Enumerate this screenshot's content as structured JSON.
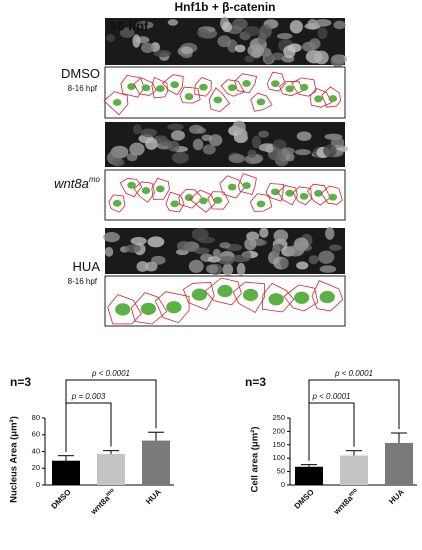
{
  "figure": {
    "title": "Hnf1b + β-catenin",
    "stage": "16 hpf",
    "rows": [
      {
        "label": "DMSO",
        "sublabel": "8-16 hpf"
      },
      {
        "label": "wnt8a",
        "superscript": "mo"
      },
      {
        "label": "HUA",
        "sublabel": "8-16 hpf"
      }
    ]
  },
  "chart_data": [
    {
      "type": "bar",
      "annotation": "n=3",
      "y_label": "Nucleus Area (μm²)",
      "categories": [
        "DMSO",
        "wnt8a",
        "HUA"
      ],
      "category_superscript": {
        "index": 1,
        "text": "mo"
      },
      "values": [
        29,
        37,
        53
      ],
      "errors": [
        6,
        4,
        10
      ],
      "colors": [
        "#000000",
        "#c4c4c4",
        "#7a7a7a"
      ],
      "ylim": [
        0,
        80
      ],
      "yticks": [
        0,
        20,
        40,
        60,
        80
      ],
      "comparisons": [
        {
          "from": 0,
          "to": 1,
          "label": "p = 0.003"
        },
        {
          "from": 0,
          "to": 2,
          "label": "p < 0.0001"
        }
      ]
    },
    {
      "type": "bar",
      "annotation": "n=3",
      "y_label": "Cell area (μm²)",
      "categories": [
        "DMSO",
        "wnt8a",
        "HUA"
      ],
      "category_superscript": {
        "index": 1,
        "text": "mo"
      },
      "values": [
        68,
        110,
        157
      ],
      "errors": [
        8,
        18,
        37
      ],
      "colors": [
        "#000000",
        "#c4c4c4",
        "#7a7a7a"
      ],
      "ylim": [
        0,
        250
      ],
      "yticks": [
        0,
        50,
        100,
        150,
        200,
        250
      ],
      "comparisons": [
        {
          "from": 0,
          "to": 1,
          "label": "p < 0.0001"
        },
        {
          "from": 0,
          "to": 2,
          "label": "p < 0.0001"
        }
      ]
    }
  ]
}
